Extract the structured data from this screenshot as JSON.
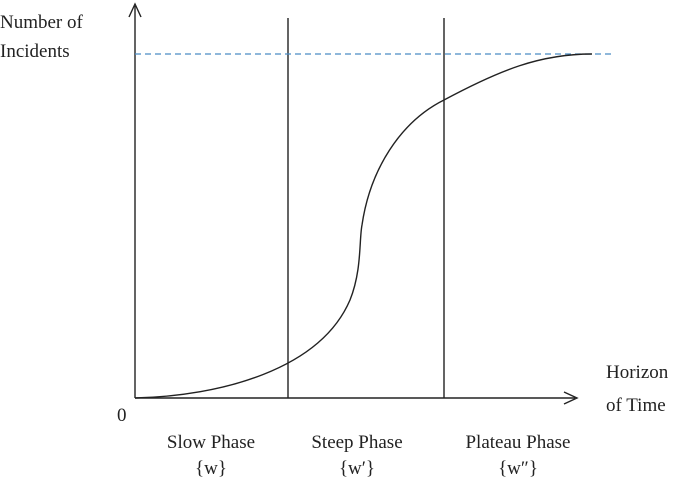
{
  "y_axis_label": [
    "Number of",
    "Incidents"
  ],
  "x_axis_label": [
    "Horizon",
    "of Time"
  ],
  "origin_label": "0",
  "phases": [
    {
      "name": "Slow Phase",
      "symbol": "{w}"
    },
    {
      "name": "Steep Phase",
      "symbol": "{w′}"
    },
    {
      "name": "Plateau Phase",
      "symbol": "{w″}"
    }
  ]
}
